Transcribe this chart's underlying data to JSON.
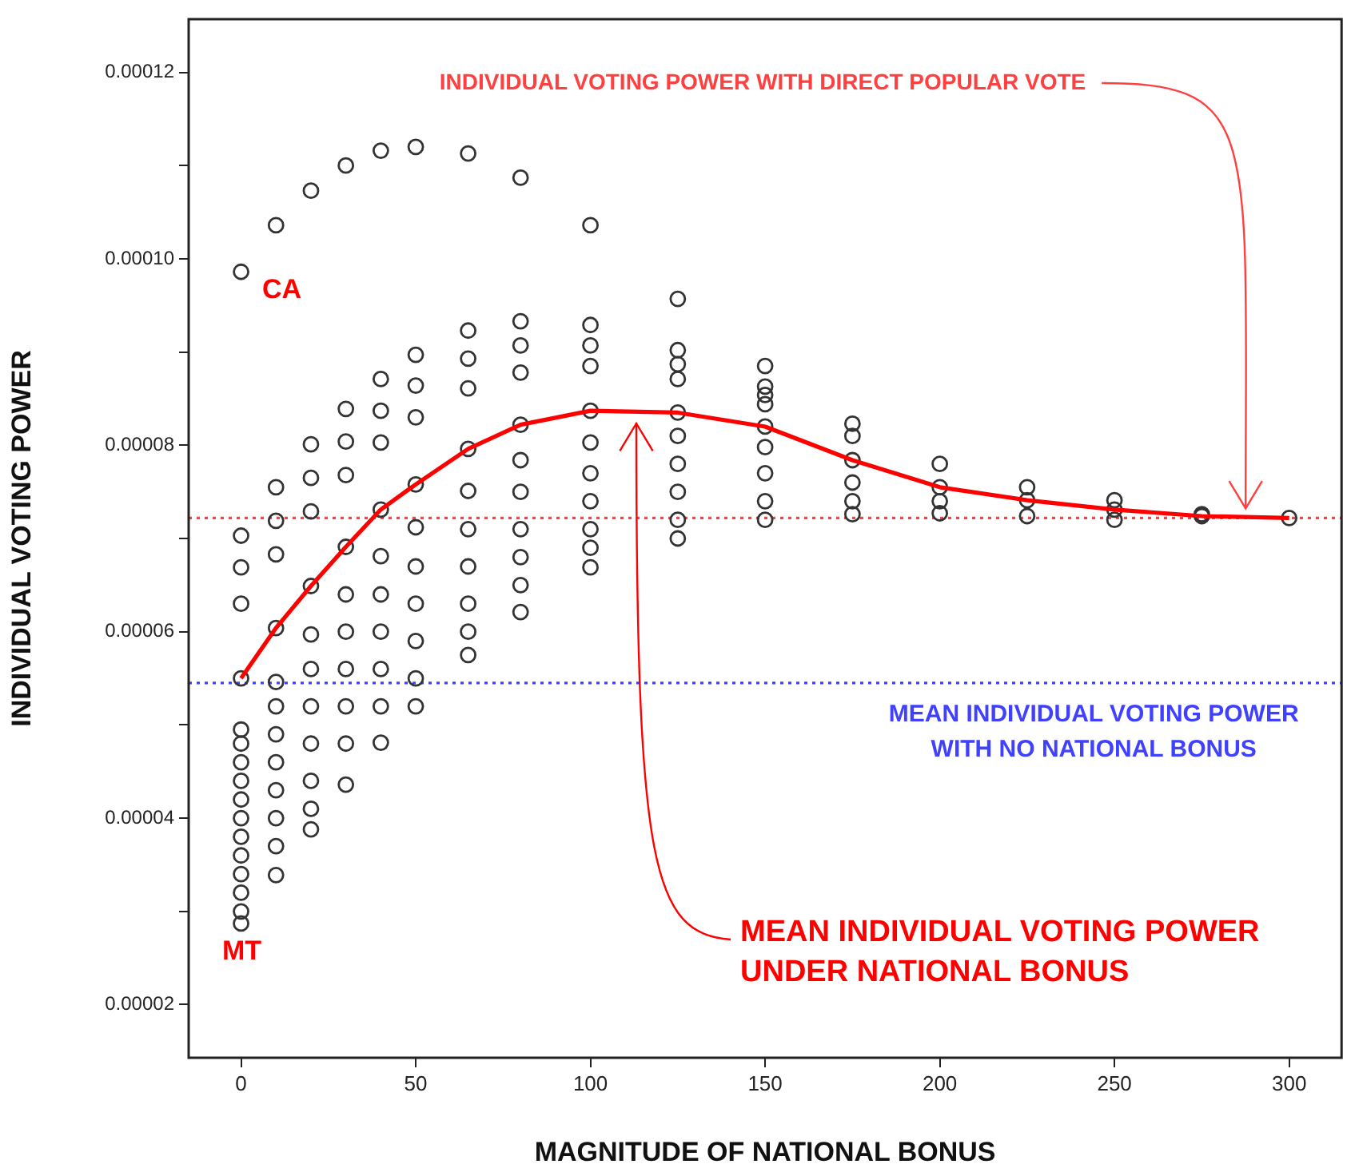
{
  "chart_data": {
    "type": "scatter",
    "xlabel": "MAGNITUDE OF NATIONAL BONUS",
    "ylabel": "INDIVIDUAL VOTING POWER",
    "xlim": [
      -15,
      315
    ],
    "xticks": [
      0,
      50,
      100,
      150,
      200,
      250,
      300
    ],
    "ylim": [
      1.43e-05,
      0.0001257
    ],
    "yticks": [
      {
        "value": 2e-05,
        "label": "0.00002"
      },
      {
        "value": 3e-05,
        "label": null
      },
      {
        "value": 4e-05,
        "label": "0.00004"
      },
      {
        "value": 5e-05,
        "label": null
      },
      {
        "value": 6e-05,
        "label": "0.00006"
      },
      {
        "value": 7e-05,
        "label": null
      },
      {
        "value": 8e-05,
        "label": "0.00008"
      },
      {
        "value": 9e-05,
        "label": null
      },
      {
        "value": 0.0001,
        "label": "0.00010"
      },
      {
        "value": 0.00011,
        "label": null
      },
      {
        "value": 0.00012,
        "label": "0.00012"
      }
    ],
    "grid": false,
    "legend": false,
    "series": [
      {
        "type": "scatter",
        "marker": "circle",
        "color": "#333333",
        "x": [
          0,
          0,
          0,
          0,
          0,
          0,
          0,
          0,
          0,
          0,
          0,
          0,
          0,
          0,
          0,
          0,
          0,
          10,
          10,
          10,
          10,
          10,
          10,
          10,
          10,
          10,
          10,
          10,
          10,
          10,
          20,
          20,
          20,
          20,
          20,
          20,
          20,
          20,
          20,
          20,
          20,
          20,
          30,
          30,
          30,
          30,
          30,
          30,
          30,
          30,
          30,
          30,
          30,
          40,
          40,
          40,
          40,
          40,
          40,
          40,
          40,
          40,
          40,
          40,
          50,
          50,
          50,
          50,
          50,
          50,
          50,
          50,
          50,
          50,
          50,
          65,
          65,
          65,
          65,
          65,
          65,
          65,
          65,
          65,
          65,
          65,
          80,
          80,
          80,
          80,
          80,
          80,
          80,
          80,
          80,
          80,
          80,
          100,
          100,
          100,
          100,
          100,
          100,
          100,
          100,
          100,
          100,
          100,
          125,
          125,
          125,
          125,
          125,
          125,
          125,
          125,
          125,
          125,
          150,
          150,
          150,
          150,
          150,
          150,
          150,
          150,
          150,
          175,
          175,
          175,
          175,
          175,
          175,
          200,
          200,
          200,
          200,
          225,
          225,
          225,
          250,
          250,
          250,
          275,
          275,
          300
        ],
        "values": [
          9.86e-05,
          7.03e-05,
          6.69e-05,
          6.3e-05,
          5.5e-05,
          4.95e-05,
          4.8e-05,
          4.6e-05,
          4.4e-05,
          4.2e-05,
          4e-05,
          3.8e-05,
          3.6e-05,
          3.4e-05,
          3.2e-05,
          3e-05,
          2.87e-05,
          0.0001036,
          7.55e-05,
          7.19e-05,
          6.83e-05,
          6.04e-05,
          5.46e-05,
          5.2e-05,
          4.9e-05,
          4.6e-05,
          4.3e-05,
          4e-05,
          3.7e-05,
          3.39e-05,
          0.0001073,
          8.01e-05,
          7.65e-05,
          7.29e-05,
          6.49e-05,
          5.97e-05,
          5.6e-05,
          5.2e-05,
          4.8e-05,
          4.4e-05,
          4.1e-05,
          3.88e-05,
          0.00011,
          8.39e-05,
          8.04e-05,
          7.68e-05,
          6.91e-05,
          6.4e-05,
          6e-05,
          5.6e-05,
          5.2e-05,
          4.8e-05,
          4.36e-05,
          0.0001116,
          8.71e-05,
          8.37e-05,
          8.03e-05,
          7.31e-05,
          6.81e-05,
          6.4e-05,
          6e-05,
          5.6e-05,
          5.2e-05,
          4.81e-05,
          0.000112,
          8.97e-05,
          8.64e-05,
          8.3e-05,
          7.58e-05,
          7.12e-05,
          6.7e-05,
          6.3e-05,
          5.9e-05,
          5.5e-05,
          5.2e-05,
          0.0001113,
          9.23e-05,
          8.93e-05,
          8.61e-05,
          7.96e-05,
          7.51e-05,
          7.1e-05,
          6.7e-05,
          6.3e-05,
          6e-05,
          5.75e-05,
          0.0001087,
          9.33e-05,
          9.07e-05,
          8.78e-05,
          8.22e-05,
          7.84e-05,
          7.5e-05,
          7.1e-05,
          6.8e-05,
          6.5e-05,
          6.21e-05,
          0.0001036,
          9.29e-05,
          9.07e-05,
          8.85e-05,
          8.37e-05,
          8.03e-05,
          7.7e-05,
          7.4e-05,
          7.1e-05,
          6.9e-05,
          6.69e-05,
          9.57e-05,
          9.02e-05,
          8.87e-05,
          8.71e-05,
          8.35e-05,
          8.1e-05,
          7.8e-05,
          7.5e-05,
          7.2e-05,
          7e-05,
          8.85e-05,
          8.63e-05,
          8.54e-05,
          8.44e-05,
          8.2e-05,
          7.98e-05,
          7.7e-05,
          7.4e-05,
          7.2e-05,
          8.23e-05,
          8.1e-05,
          7.84e-05,
          7.6e-05,
          7.4e-05,
          7.26e-05,
          7.8e-05,
          7.55e-05,
          7.4e-05,
          7.27e-05,
          7.55e-05,
          7.41e-05,
          7.24e-05,
          7.41e-05,
          7.31e-05,
          7.2e-05,
          7.26e-05,
          7.24e-05,
          7.22e-05
        ]
      },
      {
        "type": "line",
        "marker": "none",
        "color": "#ff0000",
        "x": [
          0,
          10,
          20,
          30,
          40,
          50,
          65,
          80,
          100,
          125,
          150,
          175,
          200,
          225,
          250,
          275,
          300
        ],
        "values": [
          5.5e-05,
          6.04e-05,
          6.49e-05,
          6.91e-05,
          7.31e-05,
          7.58e-05,
          7.96e-05,
          8.22e-05,
          8.37e-05,
          8.35e-05,
          8.2e-05,
          7.84e-05,
          7.55e-05,
          7.41e-05,
          7.31e-05,
          7.24e-05,
          7.22e-05
        ]
      }
    ],
    "ref_lines": [
      {
        "axis": "y",
        "value": 7.22e-05,
        "label": "INDIVIDUAL VOTING POWER WITH DIRECT POPULAR VOTE",
        "color": "#ff4040",
        "line_style": "dotted"
      },
      {
        "axis": "y",
        "value": 5.45e-05,
        "label": "MEAN INDIVIDUAL VOTING POWER WITH NO NATIONAL BONUS",
        "color": "#4040ff",
        "line_style": "dotted"
      }
    ],
    "annotations": [
      "MEAN INDIVIDUAL VOTING POWER UNDER NATIONAL BONUS",
      "CA",
      "MT"
    ]
  }
}
